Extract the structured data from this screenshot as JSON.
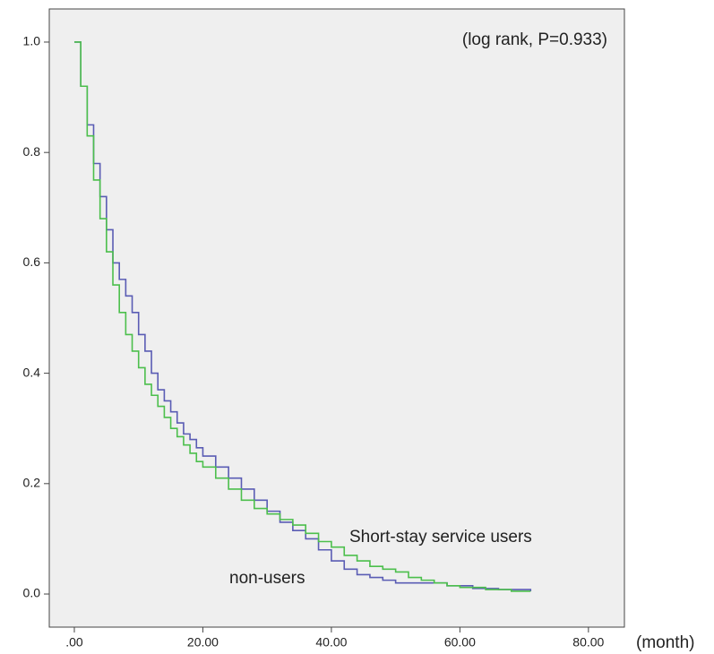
{
  "chart_data": {
    "type": "step",
    "annotations": [
      "(log rank, P=0.933)",
      "Short-stay service users",
      "non-users",
      "(month)"
    ],
    "xlim": [
      -3.9,
      85.6
    ],
    "ylim": [
      -0.06,
      1.06
    ],
    "xticks": [
      {
        "value": 0,
        "label": ".00"
      },
      {
        "value": 20,
        "label": "20.00"
      },
      {
        "value": 40,
        "label": "40.00"
      },
      {
        "value": 60,
        "label": "60.00"
      },
      {
        "value": 80,
        "label": "80.00"
      }
    ],
    "yticks": [
      {
        "value": 0,
        "label": "0.0"
      },
      0.2,
      0.4,
      0.6,
      0.8,
      {
        "value": 1,
        "label": "1.0"
      }
    ],
    "series": [
      {
        "name": "Short-stay service users",
        "color": "#4cbf4c",
        "x": [
          0,
          1,
          2,
          3,
          4,
          5,
          6,
          7,
          8,
          9,
          10,
          11,
          12,
          13,
          14,
          15,
          16,
          17,
          18,
          19,
          20,
          22,
          24,
          26,
          28,
          30,
          32,
          34,
          36,
          38,
          40,
          42,
          44,
          46,
          48,
          50,
          52,
          54,
          56,
          58,
          60,
          64,
          68,
          71
        ],
        "values": [
          1.0,
          0.92,
          0.83,
          0.75,
          0.68,
          0.62,
          0.56,
          0.51,
          0.47,
          0.44,
          0.41,
          0.38,
          0.36,
          0.34,
          0.32,
          0.3,
          0.285,
          0.27,
          0.255,
          0.24,
          0.23,
          0.21,
          0.19,
          0.17,
          0.155,
          0.145,
          0.135,
          0.125,
          0.11,
          0.095,
          0.085,
          0.07,
          0.06,
          0.05,
          0.045,
          0.04,
          0.03,
          0.025,
          0.02,
          0.015,
          0.012,
          0.008,
          0.005,
          0.005
        ]
      },
      {
        "name": "non-users",
        "color": "#5a5cb4",
        "x": [
          0,
          1,
          2,
          3,
          4,
          5,
          6,
          7,
          8,
          9,
          10,
          11,
          12,
          13,
          14,
          15,
          16,
          17,
          18,
          19,
          20,
          22,
          24,
          26,
          28,
          30,
          32,
          34,
          36,
          38,
          40,
          42,
          44,
          46,
          48,
          50,
          54,
          58,
          62,
          66,
          71
        ],
        "values": [
          1.0,
          0.92,
          0.85,
          0.78,
          0.72,
          0.66,
          0.6,
          0.57,
          0.54,
          0.51,
          0.47,
          0.44,
          0.4,
          0.37,
          0.35,
          0.33,
          0.31,
          0.29,
          0.28,
          0.265,
          0.25,
          0.23,
          0.21,
          0.19,
          0.17,
          0.15,
          0.13,
          0.115,
          0.1,
          0.08,
          0.06,
          0.045,
          0.035,
          0.03,
          0.025,
          0.02,
          0.02,
          0.015,
          0.01,
          0.008,
          0.005
        ]
      }
    ]
  }
}
